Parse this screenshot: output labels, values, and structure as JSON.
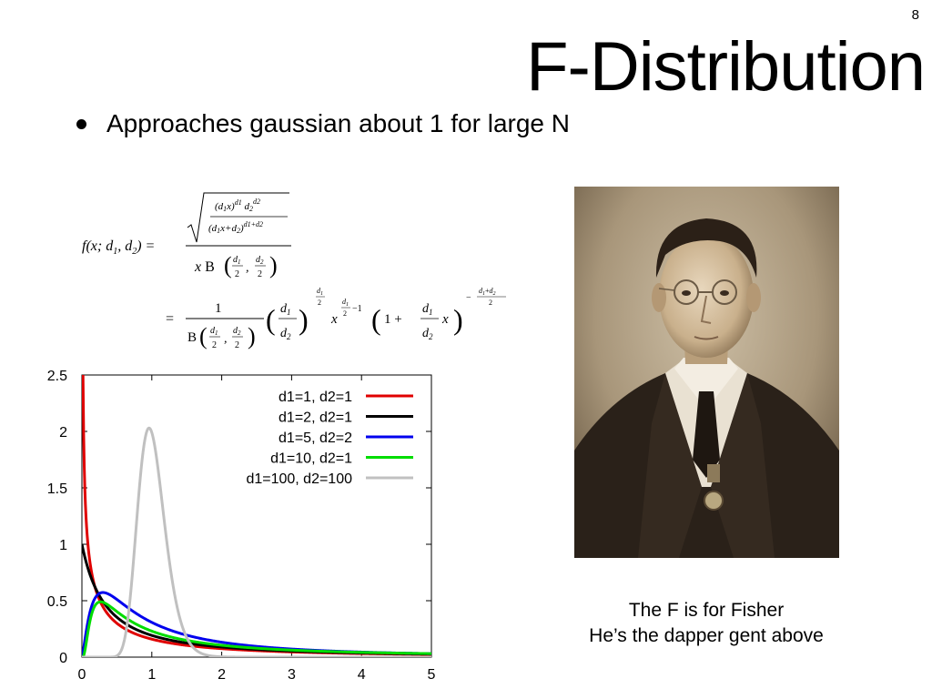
{
  "slide": {
    "number": "8",
    "title": "F-Distribution",
    "bullet": "Approaches gaussian about 1 for large N",
    "caption_line1": "The F is for Fisher",
    "caption_line2": "He’s the dapper gent above"
  },
  "colors": {
    "d1_1_d2_1": "#e00000",
    "d1_2_d2_1": "#000000",
    "d1_5_d2_2": "#0000ee",
    "d1_10_d2_1": "#00dd00",
    "d1_100_d2_100": "#c0c0c0",
    "photo_sepia": "#3a2e22"
  },
  "icons": {
    "portrait": "portrait-photo-icon"
  },
  "chart_data": {
    "type": "line",
    "title": "",
    "xlabel": "",
    "ylabel": "",
    "xlim": [
      0,
      5
    ],
    "ylim": [
      0,
      2.5
    ],
    "xticks": [
      "0",
      "1",
      "2",
      "3",
      "4",
      "5"
    ],
    "yticks": [
      "0",
      "0.5",
      "1",
      "1.5",
      "2",
      "2.5"
    ],
    "grid": false,
    "legend_position": "top-right",
    "series": [
      {
        "name": "d1=1, d2=1",
        "d1": 1,
        "d2": 1,
        "color": "#e00000"
      },
      {
        "name": "d1=2, d2=1",
        "d1": 2,
        "d2": 1,
        "color": "#000000"
      },
      {
        "name": "d1=5, d2=2",
        "d1": 5,
        "d2": 2,
        "color": "#0000ee"
      },
      {
        "name": "d1=10, d2=1",
        "d1": 10,
        "d2": 1,
        "color": "#00dd00"
      },
      {
        "name": "d1=100, d2=100",
        "d1": 100,
        "d2": 100,
        "color": "#c0c0c0"
      }
    ]
  }
}
